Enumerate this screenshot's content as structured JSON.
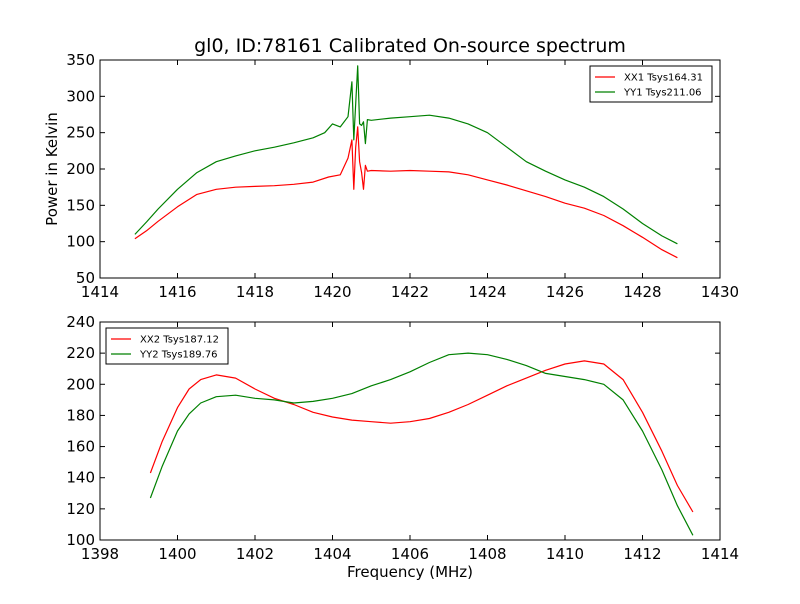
{
  "title": "gl0, ID:78161 Calibrated On-source spectrum",
  "chart_data": [
    {
      "type": "line",
      "ylabel": "Power in Kelvin",
      "xlabel": "",
      "xlim": [
        1414,
        1430
      ],
      "ylim": [
        50,
        350
      ],
      "xticks": [
        "1414",
        "1416",
        "1418",
        "1420",
        "1422",
        "1424",
        "1426",
        "1428",
        "1430"
      ],
      "yticks": [
        "50",
        "100",
        "150",
        "200",
        "250",
        "300",
        "350"
      ],
      "grid": false,
      "legend_position": "top-right",
      "series": [
        {
          "name": "XX1 Tsys164.31",
          "color": "#ff0000",
          "x": [
            1414.9,
            1415.2,
            1415.5,
            1416.0,
            1416.5,
            1417.0,
            1417.5,
            1418.0,
            1418.5,
            1419.0,
            1419.5,
            1419.9,
            1420.2,
            1420.4,
            1420.5,
            1420.55,
            1420.6,
            1420.65,
            1420.7,
            1420.75,
            1420.8,
            1420.85,
            1420.9,
            1421.0,
            1421.5,
            1422.0,
            1422.5,
            1423.0,
            1423.5,
            1424.0,
            1424.5,
            1425.0,
            1425.5,
            1426.0,
            1426.5,
            1427.0,
            1427.5,
            1428.0,
            1428.5,
            1428.9
          ],
          "y": [
            104,
            115,
            128,
            148,
            165,
            172,
            175,
            176,
            177,
            179,
            182,
            189,
            192,
            215,
            240,
            172,
            230,
            258,
            210,
            195,
            172,
            205,
            197,
            198,
            197,
            198,
            197,
            196,
            192,
            185,
            178,
            170,
            162,
            153,
            146,
            136,
            122,
            106,
            89,
            78
          ]
        },
        {
          "name": "YY1 Tsys211.06",
          "color": "#008000",
          "x": [
            1414.9,
            1415.2,
            1415.5,
            1416.0,
            1416.5,
            1417.0,
            1417.5,
            1418.0,
            1418.5,
            1419.0,
            1419.5,
            1419.8,
            1420.0,
            1420.2,
            1420.4,
            1420.5,
            1420.55,
            1420.6,
            1420.65,
            1420.7,
            1420.75,
            1420.8,
            1420.85,
            1420.9,
            1421.0,
            1421.5,
            1422.0,
            1422.5,
            1423.0,
            1423.5,
            1424.0,
            1424.5,
            1425.0,
            1425.5,
            1426.0,
            1426.5,
            1427.0,
            1427.5,
            1428.0,
            1428.5,
            1428.9
          ],
          "y": [
            110,
            127,
            145,
            172,
            195,
            210,
            218,
            225,
            230,
            236,
            243,
            250,
            262,
            258,
            272,
            320,
            240,
            290,
            342,
            262,
            260,
            265,
            235,
            268,
            267,
            270,
            272,
            274,
            270,
            262,
            250,
            230,
            210,
            197,
            185,
            175,
            162,
            145,
            125,
            108,
            97
          ]
        }
      ]
    },
    {
      "type": "line",
      "ylabel": "",
      "xlabel": "Frequency (MHz)",
      "xlim": [
        1398,
        1414
      ],
      "ylim": [
        100,
        240
      ],
      "xticks": [
        "1398",
        "1400",
        "1402",
        "1404",
        "1406",
        "1408",
        "1410",
        "1412",
        "1414"
      ],
      "yticks": [
        "100",
        "120",
        "140",
        "160",
        "180",
        "200",
        "220",
        "240"
      ],
      "grid": false,
      "legend_position": "top-left",
      "series": [
        {
          "name": "XX2 Tsys187.12",
          "color": "#ff0000",
          "x": [
            1399.3,
            1399.6,
            1400.0,
            1400.3,
            1400.6,
            1401.0,
            1401.5,
            1402.0,
            1402.5,
            1403.0,
            1403.5,
            1404.0,
            1404.5,
            1405.0,
            1405.5,
            1406.0,
            1406.5,
            1407.0,
            1407.5,
            1408.0,
            1408.5,
            1409.0,
            1409.5,
            1410.0,
            1410.5,
            1411.0,
            1411.5,
            1412.0,
            1412.5,
            1412.9,
            1413.3
          ],
          "y": [
            143,
            163,
            185,
            197,
            203,
            206,
            204,
            197,
            191,
            187,
            182,
            179,
            177,
            176,
            175,
            176,
            178,
            182,
            187,
            193,
            199,
            204,
            209,
            213,
            215,
            213,
            203,
            182,
            157,
            135,
            118
          ]
        },
        {
          "name": "YY2 Tsys189.76",
          "color": "#008000",
          "x": [
            1399.3,
            1399.6,
            1400.0,
            1400.3,
            1400.6,
            1401.0,
            1401.5,
            1402.0,
            1402.5,
            1403.0,
            1403.5,
            1404.0,
            1404.5,
            1405.0,
            1405.5,
            1406.0,
            1406.5,
            1407.0,
            1407.5,
            1408.0,
            1408.5,
            1409.0,
            1409.5,
            1410.0,
            1410.5,
            1411.0,
            1411.5,
            1412.0,
            1412.5,
            1412.9,
            1413.3
          ],
          "y": [
            127,
            147,
            170,
            181,
            188,
            192,
            193,
            191,
            190,
            188,
            189,
            191,
            194,
            199,
            203,
            208,
            214,
            219,
            220,
            219,
            216,
            212,
            207,
            205,
            203,
            200,
            190,
            170,
            145,
            122,
            103
          ]
        }
      ]
    }
  ]
}
